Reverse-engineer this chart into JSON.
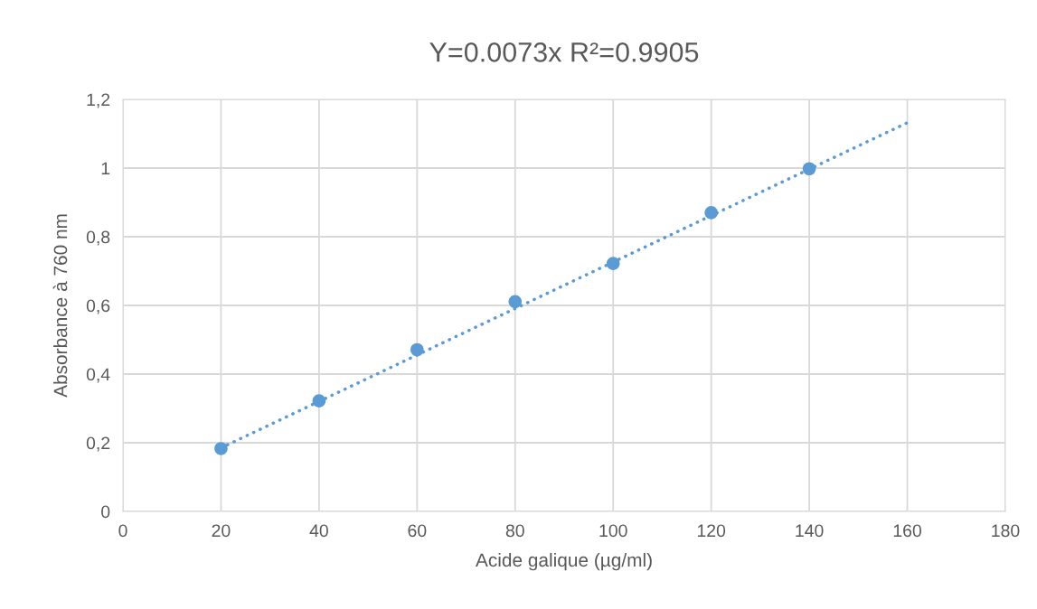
{
  "chart_data": {
    "type": "scatter",
    "title": "Y=0.0073x R²=0.9905",
    "xlabel": "Acide galique (µg/ml)",
    "ylabel": "Absorbance à 760 nm",
    "series": [
      {
        "color": "#5b9bd5",
        "marker": "circle",
        "x": [
          20,
          40,
          60,
          80,
          100,
          120,
          140
        ],
        "values": [
          0.183,
          0.322,
          0.471,
          0.611,
          0.722,
          0.87,
          0.998
        ]
      },
      {
        "type": "line",
        "color": "#5b9bd5",
        "line_style": "dotted",
        "x": [
          20,
          160
        ],
        "values": [
          0.185,
          1.132
        ]
      }
    ],
    "xlim": [
      0,
      180
    ],
    "xticks": [
      0,
      20,
      40,
      60,
      80,
      100,
      120,
      140,
      160,
      180
    ],
    "ylim": [
      0,
      1.2
    ],
    "yticks": [
      0,
      {
        "value": 0.2,
        "label": "0,2"
      },
      {
        "value": 0.4,
        "label": "0,4"
      },
      {
        "value": 0.6,
        "label": "0,6"
      },
      {
        "value": 0.8,
        "label": "0,8"
      },
      1,
      {
        "value": 1.2,
        "label": "1,2"
      }
    ],
    "grid": true,
    "legend": false
  }
}
